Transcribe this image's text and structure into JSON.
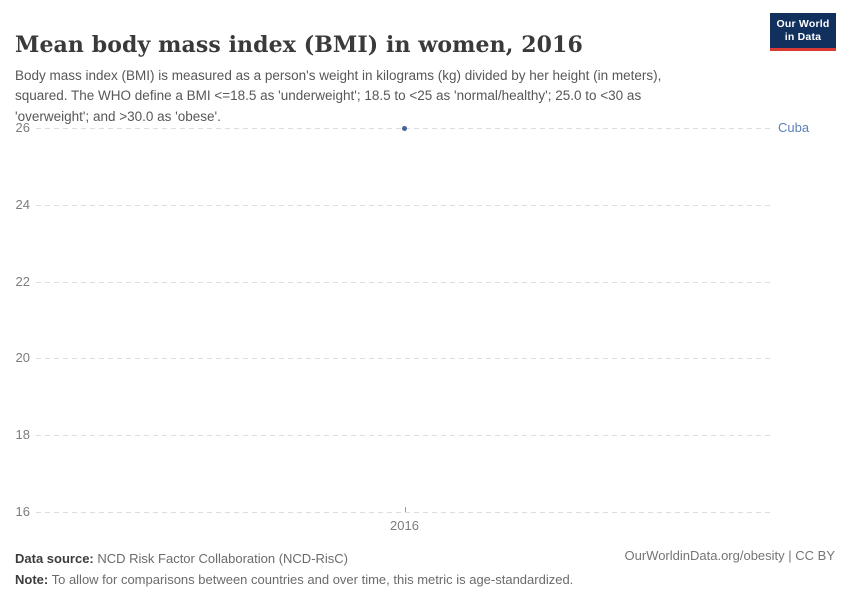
{
  "header": {
    "title": "Mean body mass index (BMI) in women, 2016",
    "subtitle": "Body mass index (BMI) is measured as a person's weight in kilograms (kg) divided by her height (in meters), squared. The WHO define a BMI <=18.5 as 'underweight'; 18.5 to <25 as 'normal/healthy'; 25.0 to <30 as 'overweight'; and >30.0 as 'obese'.",
    "logo": {
      "line1": "Our World",
      "line2": "in Data",
      "background_color": "#12305e",
      "stripe_color": "#d93a34"
    }
  },
  "chart_data": {
    "type": "scatter",
    "title": "Mean body mass index (BMI) in women, 2016",
    "xlabel": "",
    "ylabel": "",
    "x_ticks": [
      "2016"
    ],
    "y_ticks": [
      26,
      24,
      22,
      20,
      18,
      16
    ],
    "ylim": [
      16,
      26
    ],
    "grid": "horizontal-dashed",
    "gridline_color": "#dcdcdc",
    "series": [
      {
        "name": "Cuba",
        "color": "#44639e",
        "label_color": "#5b80b8",
        "points": [
          {
            "x": 2016,
            "y": 26
          }
        ]
      }
    ]
  },
  "footer": {
    "source_label": "Data source:",
    "source_text": " NCD Risk Factor Collaboration (NCD-RisC)",
    "note_label": "Note:",
    "note_text": " To allow for comparisons between countries and over time, this metric is age-standardized.",
    "credit": "OurWorldinData.org/obesity | CC BY"
  }
}
